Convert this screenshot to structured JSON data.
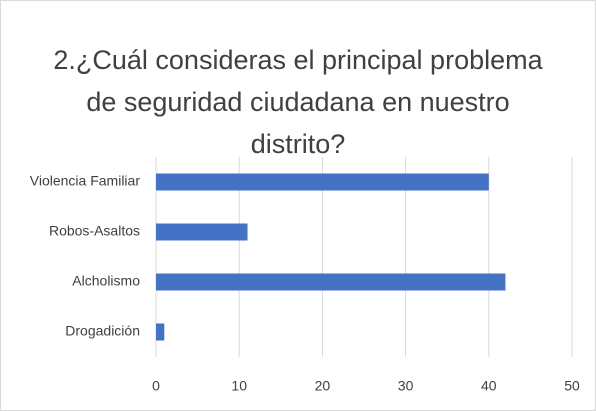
{
  "chart_data": {
    "type": "bar",
    "orientation": "horizontal",
    "title": "2.¿Cuál consideras el principal problema de seguridad ciudadana en nuestro distrito?",
    "categories": [
      "Violencia Familiar",
      "Robos-Asaltos",
      "Alcholismo",
      "Drogadición"
    ],
    "values": [
      40,
      11,
      42,
      1
    ],
    "color": "#4472c4",
    "xlim": [
      0,
      50
    ],
    "xticks": [
      0,
      10,
      20,
      30,
      40,
      50
    ],
    "grid": true
  }
}
